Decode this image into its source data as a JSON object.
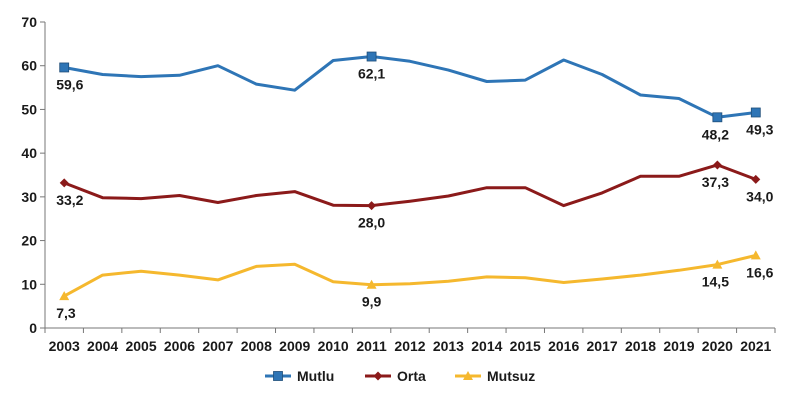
{
  "chart_data": {
    "type": "line",
    "title": "",
    "xlabel": "",
    "ylabel": "",
    "ylim": [
      0,
      70
    ],
    "yticks": [
      0,
      10,
      20,
      30,
      40,
      50,
      60,
      70
    ],
    "grid": false,
    "legend_position": "bottom-center",
    "categories": [
      "2003",
      "2004",
      "2005",
      "2006",
      "2007",
      "2008",
      "2009",
      "2010",
      "2011",
      "2012",
      "2013",
      "2014",
      "2015",
      "2016",
      "2017",
      "2018",
      "2019",
      "2020",
      "2021"
    ],
    "series": [
      {
        "name": "Mutlu",
        "color": "#2E75B6",
        "marker": "square",
        "values": [
          59.6,
          58.0,
          57.5,
          57.8,
          60.0,
          55.8,
          54.4,
          61.2,
          62.1,
          61.0,
          59.0,
          56.4,
          56.7,
          61.3,
          58.0,
          53.3,
          52.5,
          48.2,
          49.3
        ],
        "labels": [
          {
            "index": 0,
            "text": "59,6",
            "place": "below"
          },
          {
            "index": 8,
            "text": "62,1",
            "place": "below"
          },
          {
            "index": 17,
            "text": "48,2",
            "place": "below"
          },
          {
            "index": 18,
            "text": "49,3",
            "place": "below"
          }
        ]
      },
      {
        "name": "Orta",
        "color": "#8B1A1A",
        "marker": "diamond",
        "values": [
          33.2,
          29.8,
          29.6,
          30.3,
          28.7,
          30.3,
          31.2,
          28.1,
          28.0,
          29.0,
          30.2,
          32.1,
          32.1,
          28.0,
          30.9,
          34.7,
          34.7,
          37.3,
          34.0
        ],
        "labels": [
          {
            "index": 0,
            "text": "33,2",
            "place": "below"
          },
          {
            "index": 8,
            "text": "28,0",
            "place": "below"
          },
          {
            "index": 17,
            "text": "37,3",
            "place": "below"
          },
          {
            "index": 18,
            "text": "34,0",
            "place": "below"
          }
        ]
      },
      {
        "name": "Mutsuz",
        "color": "#F5B82E",
        "marker": "triangle",
        "values": [
          7.3,
          12.1,
          13.0,
          12.1,
          11.0,
          14.1,
          14.6,
          10.6,
          9.9,
          10.1,
          10.7,
          11.7,
          11.5,
          10.4,
          11.2,
          12.1,
          13.2,
          14.5,
          16.6
        ],
        "labels": [
          {
            "index": 0,
            "text": "7,3",
            "place": "below"
          },
          {
            "index": 8,
            "text": "9,9",
            "place": "below"
          },
          {
            "index": 17,
            "text": "14,5",
            "place": "below"
          },
          {
            "index": 18,
            "text": "16,6",
            "place": "below"
          }
        ]
      }
    ]
  }
}
